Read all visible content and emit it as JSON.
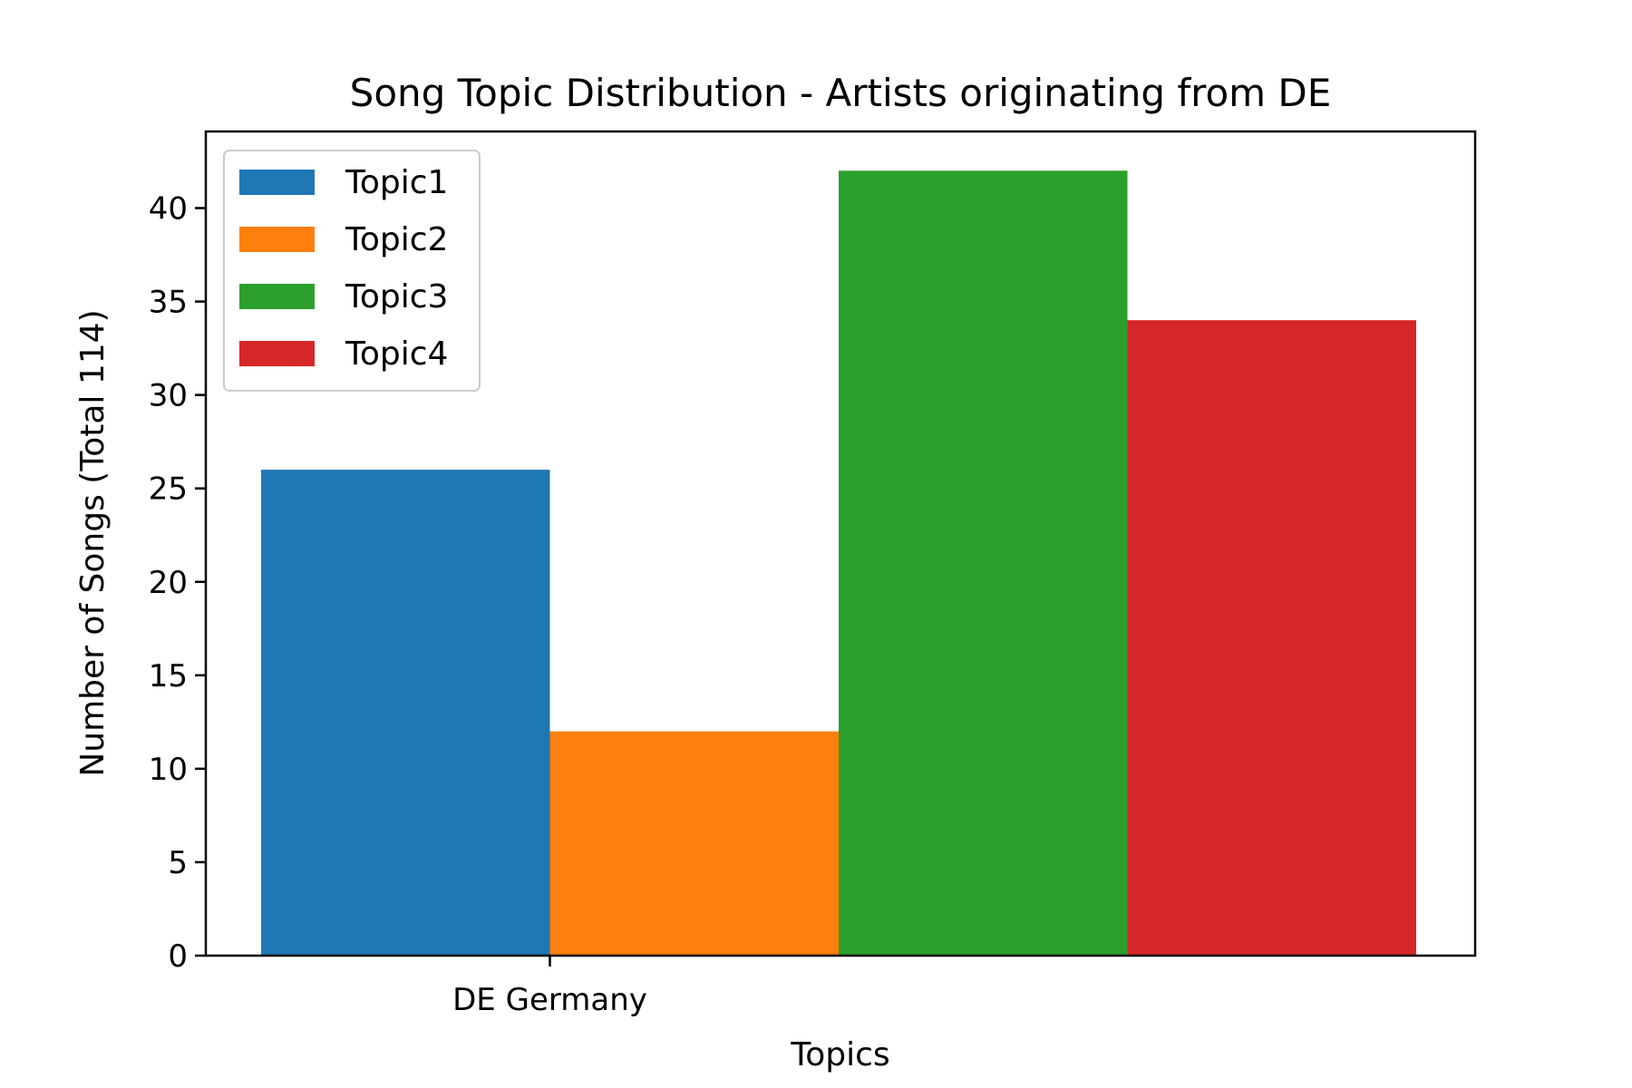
{
  "chart_data": {
    "type": "bar",
    "title": "Song Topic Distribution - Artists originating from DE",
    "xlabel": "Topics",
    "ylabel": "Number of Songs (Total 114)",
    "categories": [
      "DE Germany"
    ],
    "series": [
      {
        "name": "Topic1",
        "values": [
          26
        ],
        "color": "#1f77b4"
      },
      {
        "name": "Topic2",
        "values": [
          12
        ],
        "color": "#ff7f0e"
      },
      {
        "name": "Topic3",
        "values": [
          42
        ],
        "color": "#2ca02c"
      },
      {
        "name": "Topic4",
        "values": [
          34
        ],
        "color": "#d62728"
      }
    ],
    "ylim": [
      0,
      44.1
    ],
    "yticks": [
      0,
      5,
      10,
      15,
      20,
      25,
      30,
      35,
      40
    ],
    "grid": false,
    "legend_position": "top-left"
  }
}
